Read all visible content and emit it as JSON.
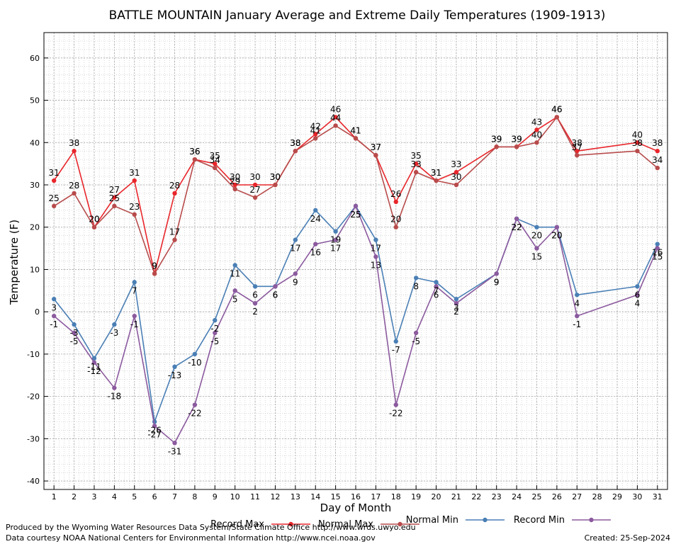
{
  "chart_data": {
    "type": "line",
    "title": "BATTLE MOUNTAIN January Average and Extreme Daily Temperatures (1909-1913)",
    "xlabel": "Day of Month",
    "ylabel": "Temperature (F)",
    "xlim": [
      0.5,
      31.5
    ],
    "ylim": [
      -42,
      66
    ],
    "yticks": [
      -40,
      -30,
      -20,
      -10,
      0,
      10,
      20,
      30,
      40,
      50,
      60
    ],
    "xticks": [
      1,
      2,
      3,
      4,
      5,
      6,
      7,
      8,
      9,
      10,
      11,
      12,
      13,
      14,
      15,
      16,
      17,
      18,
      19,
      20,
      21,
      22,
      23,
      24,
      25,
      26,
      27,
      28,
      29,
      30,
      31
    ],
    "grid": true,
    "legend_position": "bottom",
    "series": [
      {
        "name": "Record Max",
        "color": "#e8262b",
        "label_position": "above",
        "points": [
          {
            "x": 1,
            "y": 31
          },
          {
            "x": 2,
            "y": 38
          },
          {
            "x": 3,
            "y": 20
          },
          {
            "x": 4,
            "y": 27
          },
          {
            "x": 5,
            "y": 31
          },
          {
            "x": 6,
            "y": 9
          },
          {
            "x": 7,
            "y": 28
          },
          {
            "x": 8,
            "y": 36
          },
          {
            "x": 9,
            "y": 35
          },
          {
            "x": 10,
            "y": 30
          },
          {
            "x": 11,
            "y": 30
          },
          {
            "x": 12,
            "y": 30
          },
          {
            "x": 13,
            "y": 38
          },
          {
            "x": 14,
            "y": 42
          },
          {
            "x": 15,
            "y": 46
          },
          {
            "x": 16,
            "y": 41
          },
          {
            "x": 17,
            "y": 37
          },
          {
            "x": 18,
            "y": 26
          },
          {
            "x": 19,
            "y": 35
          },
          {
            "x": 20,
            "y": 31
          },
          {
            "x": 21,
            "y": 33
          },
          {
            "x": 23,
            "y": 39
          },
          {
            "x": 24,
            "y": 39
          },
          {
            "x": 25,
            "y": 43
          },
          {
            "x": 26,
            "y": 46
          },
          {
            "x": 27,
            "y": 38
          },
          {
            "x": 30,
            "y": 40
          },
          {
            "x": 31,
            "y": 38
          }
        ]
      },
      {
        "name": "Normal Max",
        "color": "#b84b4b",
        "label_position": "above",
        "points": [
          {
            "x": 1,
            "y": 25
          },
          {
            "x": 2,
            "y": 28
          },
          {
            "x": 3,
            "y": 20
          },
          {
            "x": 4,
            "y": 25
          },
          {
            "x": 5,
            "y": 23
          },
          {
            "x": 6,
            "y": 9
          },
          {
            "x": 7,
            "y": 17
          },
          {
            "x": 8,
            "y": 36
          },
          {
            "x": 9,
            "y": 34
          },
          {
            "x": 10,
            "y": 29
          },
          {
            "x": 11,
            "y": 27
          },
          {
            "x": 12,
            "y": 30
          },
          {
            "x": 13,
            "y": 38
          },
          {
            "x": 14,
            "y": 41
          },
          {
            "x": 15,
            "y": 44
          },
          {
            "x": 16,
            "y": 41
          },
          {
            "x": 17,
            "y": 37
          },
          {
            "x": 18,
            "y": 20
          },
          {
            "x": 19,
            "y": 33
          },
          {
            "x": 20,
            "y": 31
          },
          {
            "x": 21,
            "y": 30
          },
          {
            "x": 23,
            "y": 39
          },
          {
            "x": 24,
            "y": 39
          },
          {
            "x": 25,
            "y": 40
          },
          {
            "x": 26,
            "y": 46
          },
          {
            "x": 27,
            "y": 37
          },
          {
            "x": 30,
            "y": 38
          },
          {
            "x": 31,
            "y": 34
          }
        ]
      },
      {
        "name": "Normal Min",
        "color": "#4a7fb5",
        "label_position": "below",
        "points": [
          {
            "x": 1,
            "y": 3
          },
          {
            "x": 2,
            "y": -3
          },
          {
            "x": 3,
            "y": -11
          },
          {
            "x": 4,
            "y": -3
          },
          {
            "x": 5,
            "y": 7
          },
          {
            "x": 6,
            "y": -26
          },
          {
            "x": 7,
            "y": -13
          },
          {
            "x": 8,
            "y": -10
          },
          {
            "x": 9,
            "y": -2
          },
          {
            "x": 10,
            "y": 11
          },
          {
            "x": 11,
            "y": 6
          },
          {
            "x": 12,
            "y": 6
          },
          {
            "x": 13,
            "y": 17
          },
          {
            "x": 14,
            "y": 24
          },
          {
            "x": 15,
            "y": 19
          },
          {
            "x": 16,
            "y": 25
          },
          {
            "x": 17,
            "y": 17
          },
          {
            "x": 18,
            "y": -7
          },
          {
            "x": 19,
            "y": 8
          },
          {
            "x": 20,
            "y": 7
          },
          {
            "x": 21,
            "y": 3
          },
          {
            "x": 23,
            "y": 9
          },
          {
            "x": 24,
            "y": 22
          },
          {
            "x": 25,
            "y": 20
          },
          {
            "x": 26,
            "y": 20
          },
          {
            "x": 27,
            "y": 4
          },
          {
            "x": 30,
            "y": 6
          },
          {
            "x": 31,
            "y": 16
          }
        ]
      },
      {
        "name": "Record Min",
        "color": "#8b5a9e",
        "label_position": "below",
        "points": [
          {
            "x": 1,
            "y": -1
          },
          {
            "x": 2,
            "y": -5
          },
          {
            "x": 3,
            "y": -12
          },
          {
            "x": 4,
            "y": -18
          },
          {
            "x": 5,
            "y": -1
          },
          {
            "x": 6,
            "y": -27
          },
          {
            "x": 7,
            "y": -31
          },
          {
            "x": 8,
            "y": -22
          },
          {
            "x": 9,
            "y": -5
          },
          {
            "x": 10,
            "y": 5
          },
          {
            "x": 11,
            "y": 2
          },
          {
            "x": 12,
            "y": 6
          },
          {
            "x": 13,
            "y": 9
          },
          {
            "x": 14,
            "y": 16
          },
          {
            "x": 15,
            "y": 17
          },
          {
            "x": 16,
            "y": 25
          },
          {
            "x": 17,
            "y": 13
          },
          {
            "x": 18,
            "y": -22
          },
          {
            "x": 19,
            "y": -5
          },
          {
            "x": 20,
            "y": 6
          },
          {
            "x": 21,
            "y": 2
          },
          {
            "x": 23,
            "y": 9
          },
          {
            "x": 24,
            "y": 22
          },
          {
            "x": 25,
            "y": 15
          },
          {
            "x": 26,
            "y": 20
          },
          {
            "x": 27,
            "y": -1
          },
          {
            "x": 30,
            "y": 4
          },
          {
            "x": 31,
            "y": 15
          }
        ]
      }
    ]
  },
  "footer": {
    "produced_by": "Produced by the Wyoming Water Resources Data System/State Climate Office http://www.wrds.uwyo.edu",
    "courtesy": "Data courtesy NOAA National Centers for Environmental Information http://www.ncei.noaa.gov",
    "created": "Created:  25-Sep-2024"
  }
}
